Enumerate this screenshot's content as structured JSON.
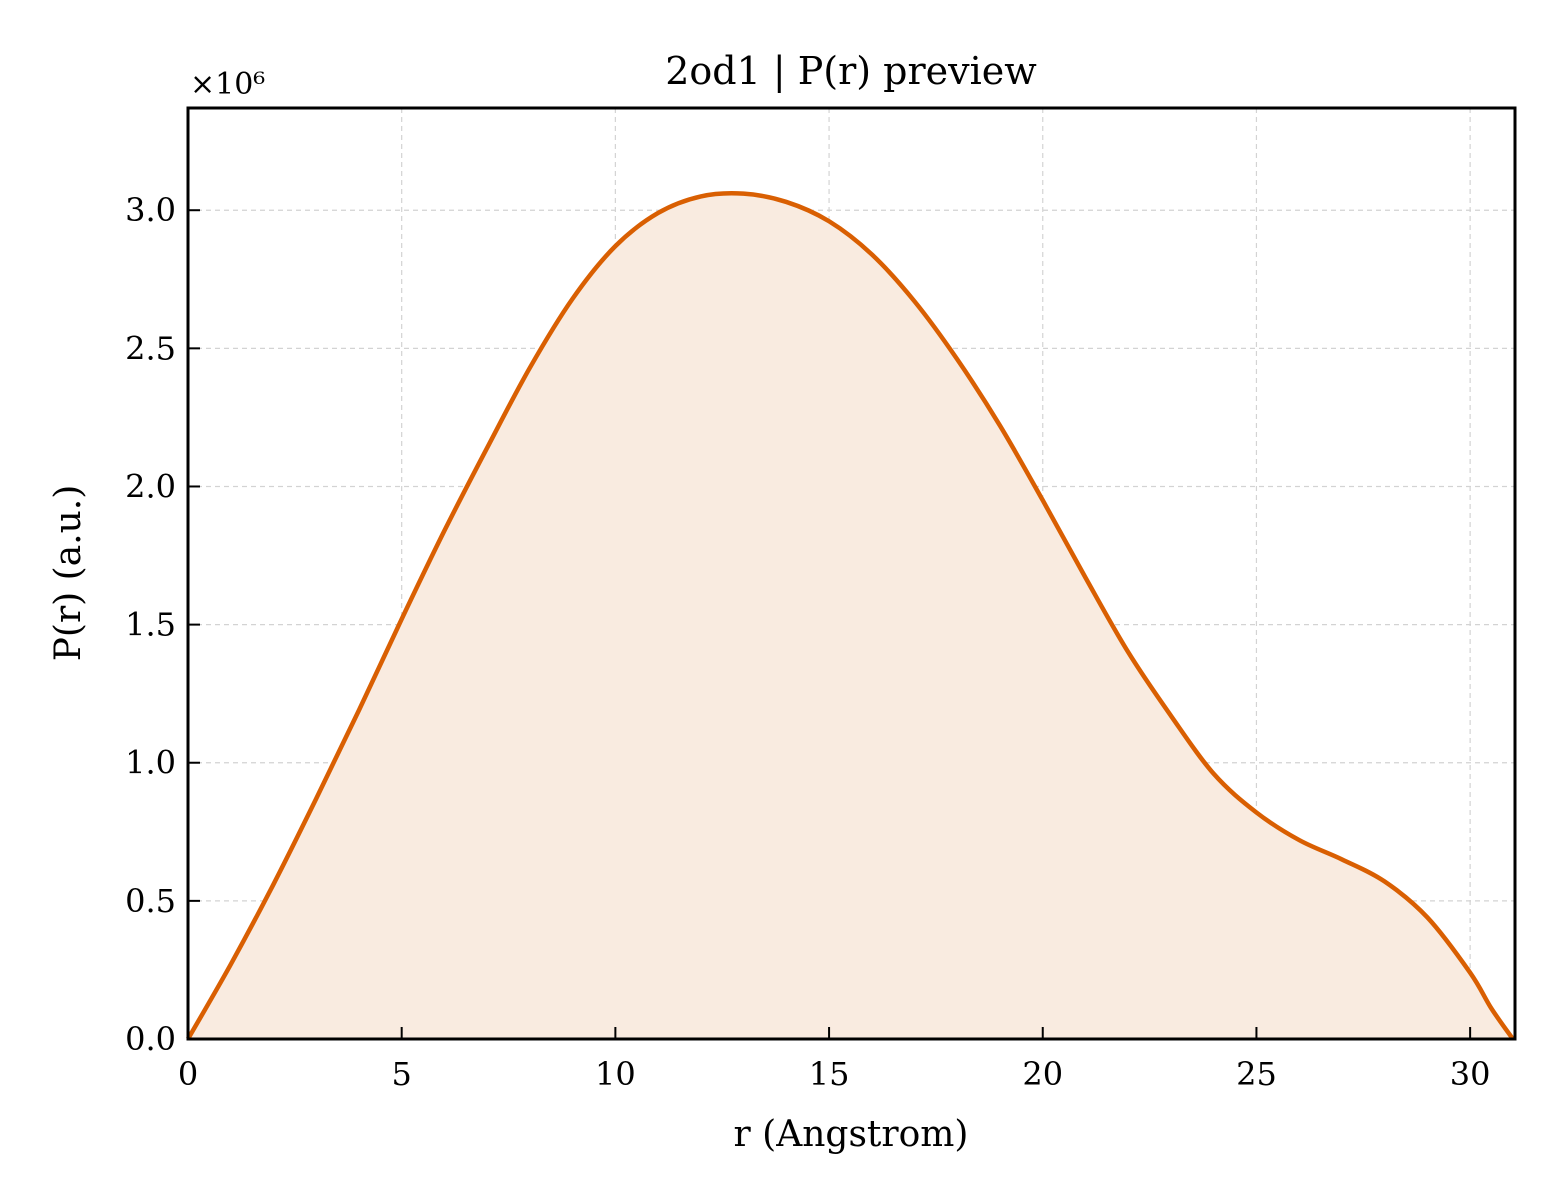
{
  "chart_data": {
    "type": "area",
    "title": "2od1 | P(r) preview",
    "xlabel": "r (Angstrom)",
    "ylabel": "P(r) (a.u.)",
    "y_scale_label": "×10⁶",
    "y_scale_factor": 1000000,
    "xlim": [
      0,
      31.05
    ],
    "ylim": [
      0,
      3.37
    ],
    "xticks": [
      0,
      5,
      10,
      15,
      20,
      25,
      30
    ],
    "yticks": [
      0.0,
      0.5,
      1.0,
      1.5,
      2.0,
      2.5,
      3.0
    ],
    "ytick_labels": [
      "0.0",
      "0.5",
      "1.0",
      "1.5",
      "2.0",
      "2.5",
      "3.0"
    ],
    "grid": true,
    "line_color": "#d95f02",
    "fill_color": "#f9ebe0",
    "series": [
      {
        "x": [
          0,
          1,
          2,
          3,
          4,
          5,
          6,
          7,
          8,
          9,
          10,
          11,
          12,
          13,
          14,
          15,
          16,
          17,
          18,
          19,
          20,
          21,
          22,
          23,
          24,
          25,
          26,
          27,
          28,
          29,
          30,
          30.5,
          31.0
        ],
        "y": [
          0.0,
          0.27,
          0.56,
          0.87,
          1.19,
          1.52,
          1.84,
          2.14,
          2.43,
          2.68,
          2.87,
          2.99,
          3.05,
          3.06,
          3.03,
          2.96,
          2.84,
          2.67,
          2.46,
          2.22,
          1.95,
          1.67,
          1.4,
          1.17,
          0.96,
          0.82,
          0.72,
          0.65,
          0.57,
          0.44,
          0.24,
          0.11,
          0.0
        ]
      }
    ]
  }
}
